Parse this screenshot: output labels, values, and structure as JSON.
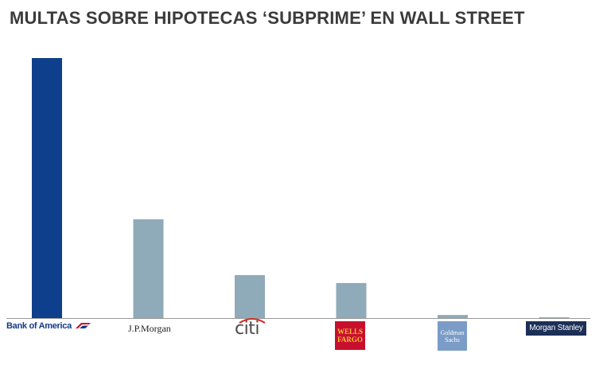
{
  "title": "MULTAS SOBRE HIPOTECAS ‘SUBPRIME’ EN WALL STREET",
  "chart_data": {
    "type": "bar",
    "categories": [
      "Bank of America",
      "J.P.Morgan",
      "citi",
      "WELLS FARGO",
      "Goldman Sachs",
      "Morgan Stanley"
    ],
    "values": [
      100,
      38,
      16.5,
      13.5,
      1.2,
      0.3
    ],
    "ylim": [
      0,
      100
    ],
    "grid": false,
    "legend": "none",
    "colors": [
      "#0d3f8c",
      "#8faab8",
      "#8faab8",
      "#8faab8",
      "#8faab8",
      "#8faab8"
    ],
    "baseline_color": "#999999"
  },
  "logos": {
    "boa": "Bank of America",
    "jpm": "J.P.Morgan",
    "citi": "citi",
    "wf_line1": "WELLS",
    "wf_line2": "FARGO",
    "gs_line1": "Goldman",
    "gs_line2": "Sachs",
    "ms": "Morgan Stanley"
  }
}
